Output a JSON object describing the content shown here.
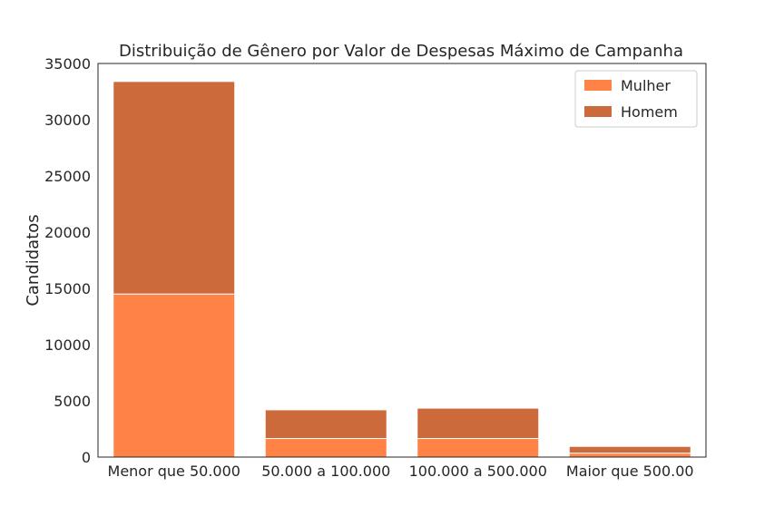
{
  "chart_data": {
    "type": "bar",
    "stacked": true,
    "title": "Distribuição de Gênero por Valor de Despesas Máximo de Campanha",
    "xlabel": "",
    "ylabel": "Candidatos",
    "categories": [
      "Menor que 50.000",
      "50.000 a 100.000",
      "100.000 a 500.000",
      "Maior que 500.00"
    ],
    "series": [
      {
        "name": "Mulher",
        "color": "#ff8246",
        "values": [
          14500,
          1650,
          1650,
          350
        ]
      },
      {
        "name": "Homem",
        "color": "#cd6a3b",
        "values": [
          18900,
          2550,
          2700,
          600
        ]
      }
    ],
    "ylim": [
      0,
      35000
    ],
    "yticks": [
      0,
      5000,
      10000,
      15000,
      20000,
      25000,
      30000,
      35000
    ],
    "grid": false,
    "legend_position": "upper right"
  }
}
